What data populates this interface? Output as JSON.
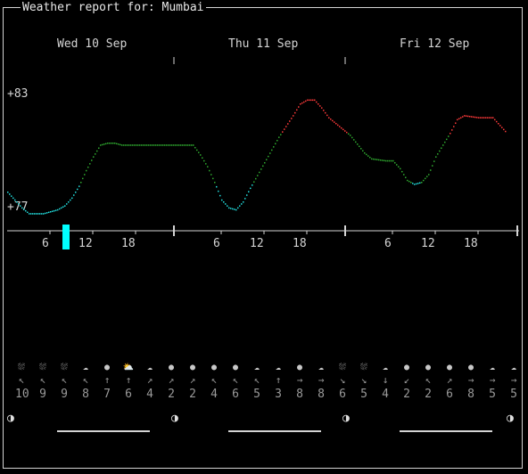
{
  "header": {
    "title": "Weather report for: Mumbai"
  },
  "days": [
    {
      "label": "Wed 10 Sep"
    },
    {
      "label": "Thu 11 Sep"
    },
    {
      "label": "Fri 12 Sep"
    }
  ],
  "y_axis": {
    "max_label": "+83",
    "min_label": "+77"
  },
  "hour_ticks": [
    "6",
    "12",
    "18",
    "6",
    "12",
    "18",
    "6",
    "12",
    "18"
  ],
  "colors": {
    "hot": "#ff3a3a",
    "warm": "#2faa2f",
    "cool": "#22e0e0",
    "cursor": "#00ffff",
    "axis": "#d4d4d4"
  },
  "chart_data": {
    "type": "line",
    "title": "",
    "x_unit": "hour",
    "ylim": [
      77,
      83
    ],
    "series": [
      {
        "values": [
          [
            0,
            78.0
          ],
          [
            1,
            77.6
          ],
          [
            2,
            77.2
          ],
          [
            3,
            76.9
          ],
          [
            4,
            76.9
          ],
          [
            5,
            76.9
          ],
          [
            6,
            77.0
          ],
          [
            7,
            77.1
          ],
          [
            8,
            77.3
          ],
          [
            9,
            77.7
          ],
          [
            10,
            78.3
          ],
          [
            11,
            79.1
          ],
          [
            12,
            79.8
          ],
          [
            13,
            80.4
          ],
          [
            14,
            80.5
          ],
          [
            15,
            80.5
          ],
          [
            16,
            80.4
          ],
          [
            18,
            80.4
          ],
          [
            21,
            80.4
          ],
          [
            24,
            80.4
          ],
          [
            26,
            80.4
          ],
          [
            27,
            79.9
          ],
          [
            28,
            79.3
          ],
          [
            29,
            78.5
          ],
          [
            30,
            77.6
          ],
          [
            31,
            77.2
          ],
          [
            32,
            77.1
          ],
          [
            33,
            77.5
          ],
          [
            34,
            78.2
          ],
          [
            36,
            79.5
          ],
          [
            38,
            80.8
          ],
          [
            40,
            81.9
          ],
          [
            41,
            82.5
          ],
          [
            42,
            82.7
          ],
          [
            43,
            82.7
          ],
          [
            44,
            82.3
          ],
          [
            45,
            81.8
          ],
          [
            46,
            81.5
          ],
          [
            48,
            80.9
          ],
          [
            50,
            80.0
          ],
          [
            51,
            79.7
          ],
          [
            53,
            79.6
          ],
          [
            54,
            79.6
          ],
          [
            55,
            79.2
          ],
          [
            56,
            78.6
          ],
          [
            57,
            78.4
          ],
          [
            58,
            78.5
          ],
          [
            59,
            78.9
          ],
          [
            60,
            79.8
          ],
          [
            62,
            81.0
          ],
          [
            63,
            81.7
          ],
          [
            64,
            81.9
          ],
          [
            66,
            81.8
          ],
          [
            68,
            81.8
          ],
          [
            69,
            81.4
          ],
          [
            70,
            81.0
          ]
        ]
      }
    ],
    "cursor_hour": 7
  },
  "forecast_slots": [
    {
      "icon": "mist-icon",
      "glyph": "⛆",
      "dir": "↖",
      "speed": "10"
    },
    {
      "icon": "mist-icon",
      "glyph": "⛆",
      "dir": "↖",
      "speed": "9"
    },
    {
      "icon": "mist-icon",
      "glyph": "⛆",
      "dir": "↖",
      "speed": "9"
    },
    {
      "icon": "cloud-icon",
      "glyph": "☁",
      "dir": "↖",
      "speed": "8"
    },
    {
      "icon": "clear-icon",
      "glyph": "●",
      "dir": "↑",
      "speed": "7"
    },
    {
      "icon": "partly-cloudy-icon",
      "glyph": "⛅",
      "dir": "↑",
      "speed": "6"
    },
    {
      "icon": "cloud-icon",
      "glyph": "☁",
      "dir": "↗",
      "speed": "4"
    },
    {
      "icon": "clear-icon",
      "glyph": "●",
      "dir": "↗",
      "speed": "2"
    },
    {
      "icon": "clear-icon",
      "glyph": "●",
      "dir": "↗",
      "speed": "2"
    },
    {
      "icon": "clear-icon",
      "glyph": "●",
      "dir": "↖",
      "speed": "4"
    },
    {
      "icon": "clear-icon",
      "glyph": "●",
      "dir": "↖",
      "speed": "6"
    },
    {
      "icon": "cloud-icon",
      "glyph": "☁",
      "dir": "↖",
      "speed": "5"
    },
    {
      "icon": "cloud-icon",
      "glyph": "☁",
      "dir": "↑",
      "speed": "3"
    },
    {
      "icon": "clear-icon",
      "glyph": "●",
      "dir": "→",
      "speed": "8"
    },
    {
      "icon": "cloud-icon",
      "glyph": "☁",
      "dir": "→",
      "speed": "8"
    },
    {
      "icon": "mist-icon",
      "glyph": "⛆",
      "dir": "↘",
      "speed": "6"
    },
    {
      "icon": "mist-icon",
      "glyph": "⛆",
      "dir": "↘",
      "speed": "5"
    },
    {
      "icon": "cloud-icon",
      "glyph": "☁",
      "dir": "↓",
      "speed": "4"
    },
    {
      "icon": "clear-icon",
      "glyph": "●",
      "dir": "↙",
      "speed": "2"
    },
    {
      "icon": "clear-icon",
      "glyph": "●",
      "dir": "↖",
      "speed": "2"
    },
    {
      "icon": "clear-icon",
      "glyph": "●",
      "dir": "↗",
      "speed": "6"
    },
    {
      "icon": "clear-icon",
      "glyph": "●",
      "dir": "→",
      "speed": "8"
    },
    {
      "icon": "cloud-icon",
      "glyph": "☁",
      "dir": "→",
      "speed": "5"
    },
    {
      "icon": "cloud-icon",
      "glyph": "☁",
      "dir": "→",
      "speed": "5"
    }
  ],
  "moon": {
    "glyph": "◑",
    "icon": "moon-icon"
  }
}
